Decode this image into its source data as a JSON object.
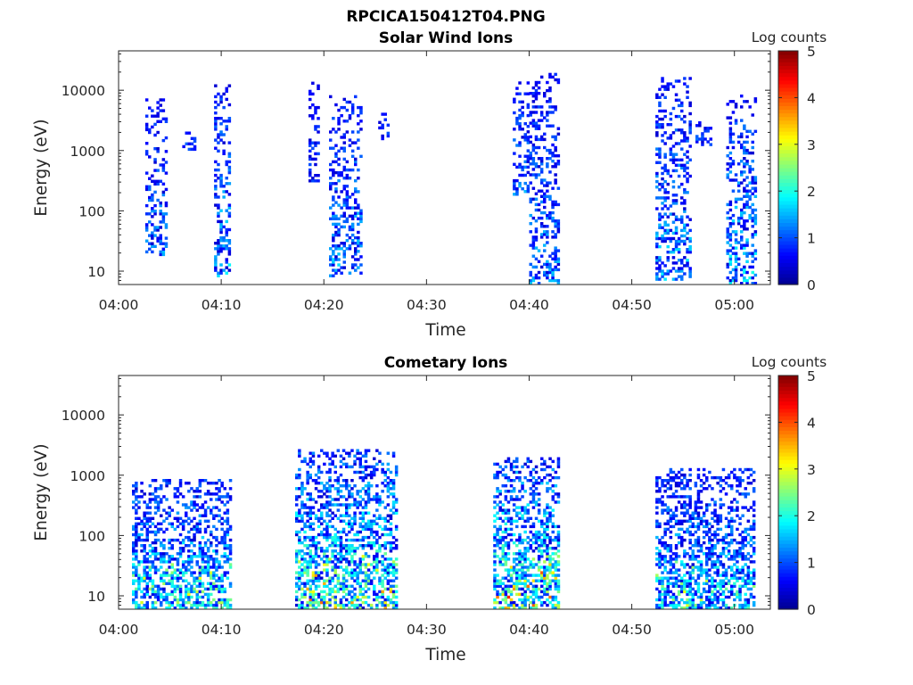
{
  "figure": {
    "title": "RPCICA150412T04.PNG"
  },
  "colormap": [
    "#00008f",
    "#0000ff",
    "#0080ff",
    "#00ffff",
    "#80ff80",
    "#ffff00",
    "#ff8000",
    "#ff0000",
    "#800000"
  ],
  "chart_data": [
    {
      "type": "heatmap",
      "title": "Solar Wind Ions",
      "xlabel": "Time",
      "ylabel": "Energy (eV)",
      "colorbar_label": "Log counts",
      "colorbar_range": [
        0,
        5
      ],
      "colorbar_ticks": [
        "0",
        "1",
        "2",
        "3",
        "4",
        "5"
      ],
      "x_ticks": [
        "04:00",
        "04:10",
        "04:20",
        "04:30",
        "04:40",
        "04:50",
        "05:00"
      ],
      "y_ticks": [
        "10",
        "100",
        "1000",
        "10000"
      ],
      "y_scale": "log",
      "ylim": [
        6,
        45000
      ],
      "xlim_minutes_after_0400": [
        0,
        63.5
      ],
      "bursts": [
        {
          "t0": 2.6,
          "t1": 4.5,
          "emin": 18,
          "emax": 8000,
          "intensity": 1.4
        },
        {
          "t0": 6.2,
          "t1": 7.3,
          "emin": 1000,
          "emax": 2500,
          "intensity": 1.0
        },
        {
          "t0": 9.3,
          "t1": 10.8,
          "emin": 8,
          "emax": 12000,
          "intensity": 1.8
        },
        {
          "t0": 18.5,
          "t1": 19.5,
          "emin": 300,
          "emax": 13000,
          "intensity": 0.9
        },
        {
          "t0": 20.5,
          "t1": 23.5,
          "emin": 8,
          "emax": 8000,
          "intensity": 1.6
        },
        {
          "t0": 25.3,
          "t1": 26.2,
          "emin": 1500,
          "emax": 4000,
          "intensity": 1.0
        },
        {
          "t0": 38.4,
          "t1": 39.8,
          "emin": 180,
          "emax": 15000,
          "intensity": 1.4
        },
        {
          "t0": 40.0,
          "t1": 42.8,
          "emin": 6,
          "emax": 19000,
          "intensity": 1.5
        },
        {
          "t0": 52.3,
          "t1": 55.6,
          "emin": 7,
          "emax": 16000,
          "intensity": 1.7
        },
        {
          "t0": 56.2,
          "t1": 57.8,
          "emin": 1200,
          "emax": 3000,
          "intensity": 1.1
        },
        {
          "t0": 59.2,
          "t1": 62.0,
          "emin": 6,
          "emax": 8000,
          "intensity": 1.9
        }
      ]
    },
    {
      "type": "heatmap",
      "title": "Cometary Ions",
      "xlabel": "Time",
      "ylabel": "Energy (eV)",
      "colorbar_label": "Log counts",
      "colorbar_range": [
        0,
        5
      ],
      "colorbar_ticks": [
        "0",
        "1",
        "2",
        "3",
        "4",
        "5"
      ],
      "x_ticks": [
        "04:00",
        "04:10",
        "04:20",
        "04:30",
        "04:40",
        "04:50",
        "05:00"
      ],
      "y_ticks": [
        "10",
        "100",
        "1000",
        "10000"
      ],
      "y_scale": "log",
      "ylim": [
        6,
        45000
      ],
      "xlim_minutes_after_0400": [
        0,
        63.5
      ],
      "bursts": [
        {
          "t0": 1.3,
          "t1": 10.8,
          "emin": 6,
          "emax": 800,
          "intensity": 2.0
        },
        {
          "t0": 17.2,
          "t1": 27.0,
          "emin": 6,
          "emax": 2500,
          "intensity": 2.4
        },
        {
          "t0": 36.5,
          "t1": 42.8,
          "emin": 6,
          "emax": 1800,
          "intensity": 2.6
        },
        {
          "t0": 52.3,
          "t1": 62.0,
          "emin": 6,
          "emax": 1200,
          "intensity": 1.8
        }
      ]
    }
  ]
}
